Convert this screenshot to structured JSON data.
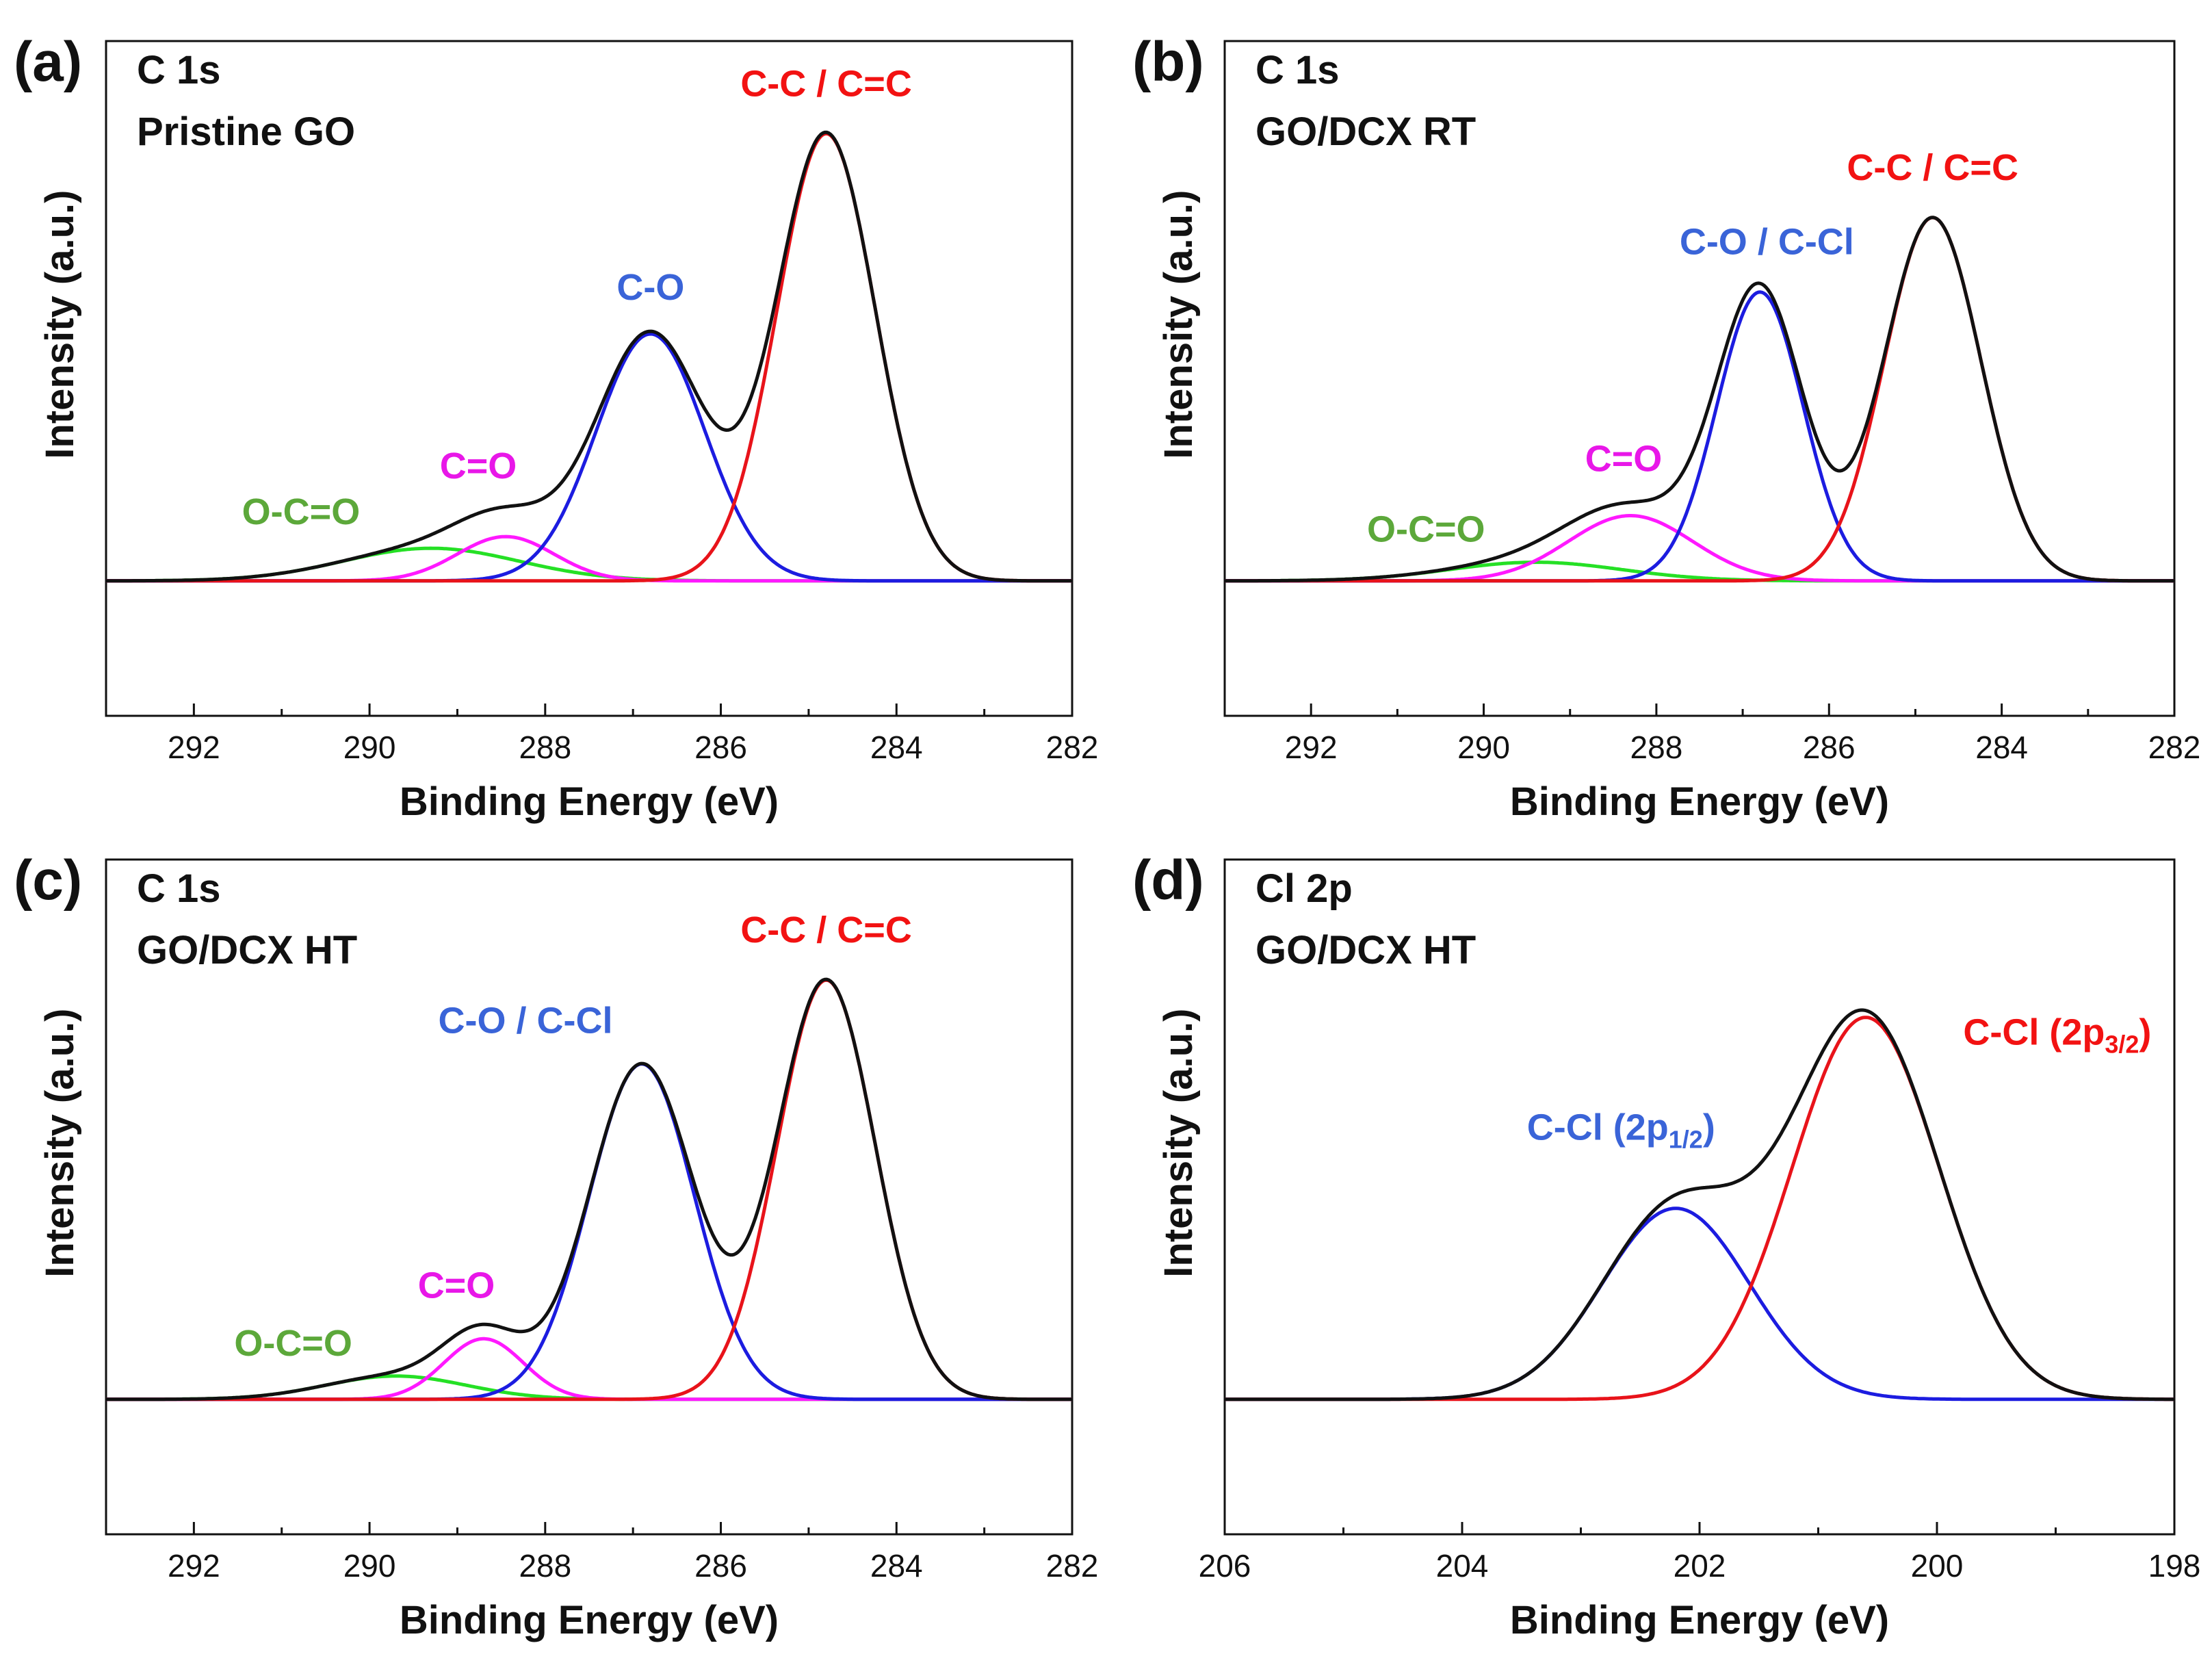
{
  "chart_data": [
    {
      "panel": "(a)",
      "type": "line",
      "title": [
        "C 1s",
        "Pristine GO"
      ],
      "xlabel": "Binding Energy (eV)",
      "ylabel": "Intensity (a.u.)",
      "xlim": [
        293,
        282
      ],
      "ylim": [
        0,
        1.1
      ],
      "xticks": [
        292,
        290,
        288,
        286,
        284,
        282
      ],
      "xtick_labels": [
        "292",
        "290",
        "288",
        "286",
        "284",
        "282"
      ],
      "background": 0.05,
      "peaks": [
        {
          "label": "C-C / C=C",
          "center": 284.8,
          "height": 0.96,
          "width": 0.56,
          "color": "#e8131a"
        },
        {
          "label": "C-O",
          "center": 286.8,
          "height": 0.53,
          "width": 0.62,
          "color": "#1c1ce0"
        },
        {
          "label": "C=O",
          "center": 288.45,
          "height": 0.095,
          "width": 0.55,
          "color": "#ff19ff"
        },
        {
          "label": "O-C=O",
          "center": 289.3,
          "height": 0.07,
          "width": 1.0,
          "color": "#25e025"
        }
      ],
      "envelope_color": "#111111",
      "label_colors": {
        "C-C / C=C": "#f21212",
        "C-O": "#3a64d8",
        "C=O": "#e817e8",
        "O-C=O": "#5ca83a"
      }
    },
    {
      "panel": "(b)",
      "type": "line",
      "title": [
        "C 1s",
        "GO/DCX RT"
      ],
      "xlabel": "Binding Energy (eV)",
      "ylabel": "Intensity (a.u.)",
      "xlim": [
        293,
        282
      ],
      "ylim": [
        0,
        1.1
      ],
      "xticks": [
        292,
        290,
        288,
        286,
        284,
        282
      ],
      "xtick_labels": [
        "292",
        "290",
        "288",
        "286",
        "284",
        "282"
      ],
      "background": 0.05,
      "peaks": [
        {
          "label": "C-C / C=C",
          "center": 284.8,
          "height": 0.78,
          "width": 0.56,
          "color": "#e8131a"
        },
        {
          "label": "C-O / C-Cl",
          "center": 286.8,
          "height": 0.62,
          "width": 0.5,
          "color": "#1c1ce0"
        },
        {
          "label": "C=O",
          "center": 288.3,
          "height": 0.14,
          "width": 0.72,
          "color": "#ff19ff"
        },
        {
          "label": "O-C=O",
          "center": 289.4,
          "height": 0.04,
          "width": 1.0,
          "color": "#25e025"
        }
      ],
      "envelope_color": "#111111",
      "label_colors": {
        "C-C / C=C": "#f21212",
        "C-O / C-Cl": "#3a64d8",
        "C=O": "#e817e8",
        "O-C=O": "#5ca83a"
      }
    },
    {
      "panel": "(c)",
      "type": "line",
      "title": [
        "C 1s",
        "GO/DCX HT"
      ],
      "xlabel": "Binding Energy (eV)",
      "ylabel": "Intensity (a.u.)",
      "xlim": [
        293,
        282
      ],
      "ylim": [
        0,
        1.1
      ],
      "xticks": [
        292,
        290,
        288,
        286,
        284,
        282
      ],
      "xtick_labels": [
        "292",
        "290",
        "288",
        "286",
        "284",
        "282"
      ],
      "background": 0.05,
      "peaks": [
        {
          "label": "C-C / C=C",
          "center": 284.8,
          "height": 0.9,
          "width": 0.56,
          "color": "#e8131a"
        },
        {
          "label": "C-O / C-Cl",
          "center": 286.9,
          "height": 0.72,
          "width": 0.6,
          "color": "#1c1ce0"
        },
        {
          "label": "C=O",
          "center": 288.7,
          "height": 0.13,
          "width": 0.45,
          "color": "#ff19ff"
        },
        {
          "label": "O-C=O",
          "center": 289.7,
          "height": 0.05,
          "width": 0.8,
          "color": "#25e025"
        }
      ],
      "envelope_color": "#111111",
      "label_colors": {
        "C-C / C=C": "#f21212",
        "C-O / C-Cl": "#3a64d8",
        "C=O": "#e817e8",
        "O-C=O": "#5ca83a"
      }
    },
    {
      "panel": "(d)",
      "type": "line",
      "title": [
        "Cl 2p",
        "GO/DCX HT"
      ],
      "xlabel": "Binding Energy (eV)",
      "ylabel": "Intensity (a.u.)",
      "xlim": [
        206,
        198
      ],
      "ylim": [
        0,
        1.1
      ],
      "xticks": [
        206,
        204,
        202,
        200,
        198
      ],
      "xtick_labels": [
        "206",
        "204",
        "202",
        "200",
        "198"
      ],
      "background": 0.15,
      "peaks": [
        {
          "label": "C-Cl (2p3/2)",
          "label_main": "C-Cl (2p",
          "label_sub": "3/2",
          "label_end": ")",
          "center": 200.6,
          "height": 0.82,
          "width": 0.62,
          "color": "#e8131a"
        },
        {
          "label": "C-Cl (2p1/2)",
          "label_main": "C-Cl (2p",
          "label_sub": "1/2",
          "label_end": ")",
          "center": 202.2,
          "height": 0.41,
          "width": 0.62,
          "color": "#1c1ce0"
        }
      ],
      "envelope_color": "#111111",
      "label_colors": {
        "C-Cl (2p3/2)": "#f21212",
        "C-Cl (2p1/2)": "#3a64d8"
      }
    }
  ]
}
